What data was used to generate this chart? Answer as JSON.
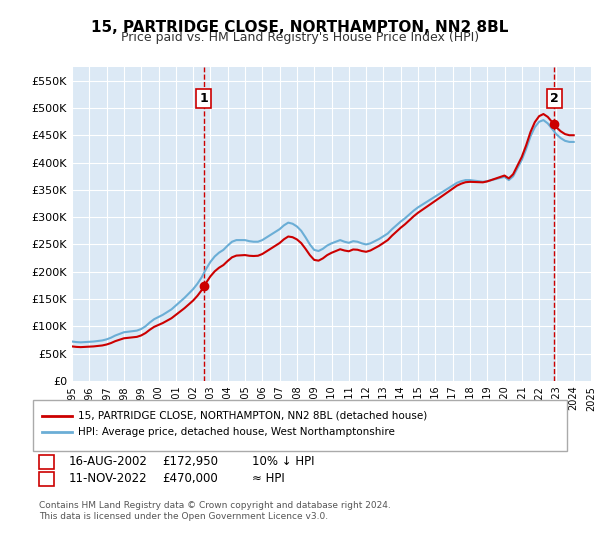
{
  "title": "15, PARTRIDGE CLOSE, NORTHAMPTON, NN2 8BL",
  "subtitle": "Price paid vs. HM Land Registry's House Price Index (HPI)",
  "legend_line1": "15, PARTRIDGE CLOSE, NORTHAMPTON, NN2 8BL (detached house)",
  "legend_line2": "HPI: Average price, detached house, West Northamptonshire",
  "footnote": "Contains HM Land Registry data © Crown copyright and database right 2024.\nThis data is licensed under the Open Government Licence v3.0.",
  "annotation1_label": "1",
  "annotation1_date": "16-AUG-2002",
  "annotation1_price": "£172,950",
  "annotation1_hpi": "10% ↓ HPI",
  "annotation2_label": "2",
  "annotation2_date": "11-NOV-2022",
  "annotation2_price": "£470,000",
  "annotation2_hpi": "≈ HPI",
  "hpi_color": "#6baed6",
  "price_color": "#cc0000",
  "dashed_color": "#cc0000",
  "bg_color": "#dce9f5",
  "ylim": [
    0,
    575000
  ],
  "yticks": [
    0,
    50000,
    100000,
    150000,
    200000,
    250000,
    300000,
    350000,
    400000,
    450000,
    500000,
    550000
  ],
  "hpi_data": {
    "years": [
      1995.0,
      1995.25,
      1995.5,
      1995.75,
      1996.0,
      1996.25,
      1996.5,
      1996.75,
      1997.0,
      1997.25,
      1997.5,
      1997.75,
      1998.0,
      1998.25,
      1998.5,
      1998.75,
      1999.0,
      1999.25,
      1999.5,
      1999.75,
      2000.0,
      2000.25,
      2000.5,
      2000.75,
      2001.0,
      2001.25,
      2001.5,
      2001.75,
      2002.0,
      2002.25,
      2002.5,
      2002.75,
      2003.0,
      2003.25,
      2003.5,
      2003.75,
      2004.0,
      2004.25,
      2004.5,
      2004.75,
      2005.0,
      2005.25,
      2005.5,
      2005.75,
      2006.0,
      2006.25,
      2006.5,
      2006.75,
      2007.0,
      2007.25,
      2007.5,
      2007.75,
      2008.0,
      2008.25,
      2008.5,
      2008.75,
      2009.0,
      2009.25,
      2009.5,
      2009.75,
      2010.0,
      2010.25,
      2010.5,
      2010.75,
      2011.0,
      2011.25,
      2011.5,
      2011.75,
      2012.0,
      2012.25,
      2012.5,
      2012.75,
      2013.0,
      2013.25,
      2013.5,
      2013.75,
      2014.0,
      2014.25,
      2014.5,
      2014.75,
      2015.0,
      2015.25,
      2015.5,
      2015.75,
      2016.0,
      2016.25,
      2016.5,
      2016.75,
      2017.0,
      2017.25,
      2017.5,
      2017.75,
      2018.0,
      2018.25,
      2018.5,
      2018.75,
      2019.0,
      2019.25,
      2019.5,
      2019.75,
      2020.0,
      2020.25,
      2020.5,
      2020.75,
      2021.0,
      2021.25,
      2021.5,
      2021.75,
      2022.0,
      2022.25,
      2022.5,
      2022.75,
      2023.0,
      2023.25,
      2023.5,
      2023.75,
      2024.0
    ],
    "values": [
      72000,
      71000,
      70500,
      71000,
      71500,
      72000,
      73000,
      74000,
      76000,
      79000,
      83000,
      86000,
      89000,
      90000,
      91000,
      92000,
      95000,
      100000,
      107000,
      113000,
      117000,
      121000,
      126000,
      131000,
      138000,
      145000,
      152000,
      160000,
      168000,
      178000,
      190000,
      205000,
      218000,
      228000,
      235000,
      240000,
      248000,
      255000,
      258000,
      258000,
      258000,
      256000,
      255000,
      255000,
      258000,
      263000,
      268000,
      273000,
      278000,
      285000,
      290000,
      288000,
      283000,
      275000,
      263000,
      250000,
      240000,
      238000,
      242000,
      248000,
      252000,
      255000,
      258000,
      255000,
      253000,
      256000,
      255000,
      252000,
      250000,
      252000,
      256000,
      260000,
      265000,
      270000,
      278000,
      285000,
      292000,
      298000,
      305000,
      312000,
      318000,
      323000,
      328000,
      333000,
      338000,
      343000,
      348000,
      353000,
      358000,
      363000,
      366000,
      368000,
      368000,
      367000,
      366000,
      365000,
      366000,
      368000,
      370000,
      372000,
      374000,
      368000,
      375000,
      390000,
      405000,
      425000,
      448000,
      465000,
      475000,
      478000,
      472000,
      462000,
      452000,
      445000,
      440000,
      438000,
      438000
    ]
  },
  "price_data": {
    "years": [
      2002.625,
      2022.87
    ],
    "values": [
      172950,
      470000
    ]
  },
  "sale1_x": 2002.625,
  "sale1_y": 172950,
  "sale2_x": 2022.87,
  "sale2_y": 470000,
  "xmin": 1995,
  "xmax": 2025
}
